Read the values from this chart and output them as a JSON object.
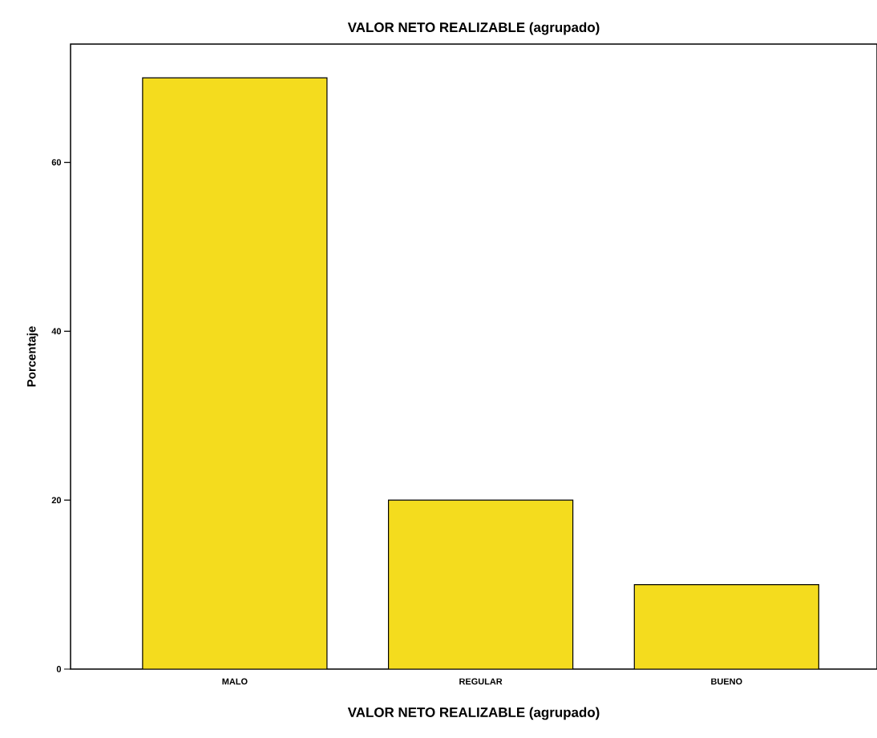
{
  "chart_data": {
    "type": "bar",
    "title": "VALOR NETO REALIZABLE (agrupado)",
    "xlabel": "VALOR NETO REALIZABLE (agrupado)",
    "ylabel": "Porcentaje",
    "categories": [
      "MALO",
      "REGULAR",
      "BUENO"
    ],
    "values": [
      70,
      20,
      10
    ],
    "color": "#f4dc1e",
    "ylim": [
      0,
      74
    ],
    "yticks": [
      0,
      20,
      40,
      60
    ],
    "grid": false
  }
}
